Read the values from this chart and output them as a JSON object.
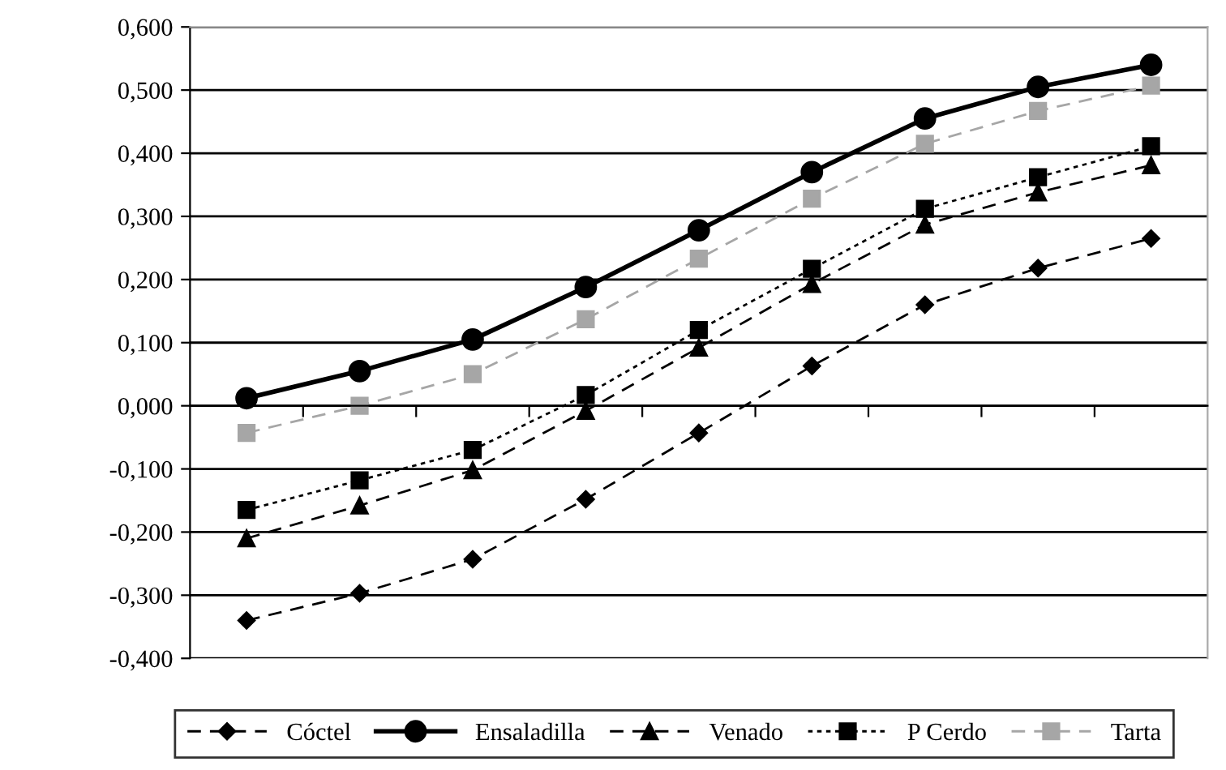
{
  "chart_data": {
    "type": "line",
    "categories": [
      null,
      null,
      null,
      null,
      null,
      null,
      null,
      null,
      null
    ],
    "series": [
      {
        "name": "Cóctel",
        "color": "#000000",
        "marker": "diamond",
        "line_style": "dashed",
        "values": [
          -0.34,
          -0.297,
          -0.243,
          -0.148,
          -0.043,
          0.063,
          0.16,
          0.218,
          0.265
        ]
      },
      {
        "name": "Ensaladilla",
        "color": "#000000",
        "marker": "circle",
        "line_style": "solid",
        "values": [
          0.012,
          0.055,
          0.105,
          0.188,
          0.278,
          0.37,
          0.455,
          0.505,
          0.54
        ]
      },
      {
        "name": "Venado",
        "color": "#000000",
        "marker": "triangle",
        "line_style": "dashed",
        "values": [
          -0.21,
          -0.158,
          -0.102,
          -0.008,
          0.092,
          0.193,
          0.287,
          0.338,
          0.381
        ]
      },
      {
        "name": "P Cerdo",
        "color": "#000000",
        "marker": "square",
        "line_style": "dotted",
        "values": [
          -0.165,
          -0.118,
          -0.07,
          0.017,
          0.12,
          0.217,
          0.312,
          0.362,
          0.411
        ]
      },
      {
        "name": "Tarta",
        "color": "#a6a6a6",
        "marker": "square",
        "line_style": "dashed",
        "values": [
          -0.043,
          0.0,
          0.05,
          0.137,
          0.233,
          0.328,
          0.415,
          0.467,
          0.507
        ]
      }
    ],
    "ylim": [
      -0.4,
      0.6
    ],
    "yticks": [
      {
        "value": -0.4,
        "label": "-0,400"
      },
      {
        "value": -0.3,
        "label": "-0,300"
      },
      {
        "value": -0.2,
        "label": "-0,200"
      },
      {
        "value": -0.1,
        "label": "-0,100"
      },
      {
        "value": 0.0,
        "label": "0,000"
      },
      {
        "value": 0.1,
        "label": "0,100"
      },
      {
        "value": 0.2,
        "label": "0,200"
      },
      {
        "value": 0.3,
        "label": "0,300"
      },
      {
        "value": 0.4,
        "label": "0,400"
      },
      {
        "value": 0.5,
        "label": "0,500"
      },
      {
        "value": 0.6,
        "label": "0,600"
      }
    ],
    "grid": "y",
    "legend": "bottom"
  }
}
